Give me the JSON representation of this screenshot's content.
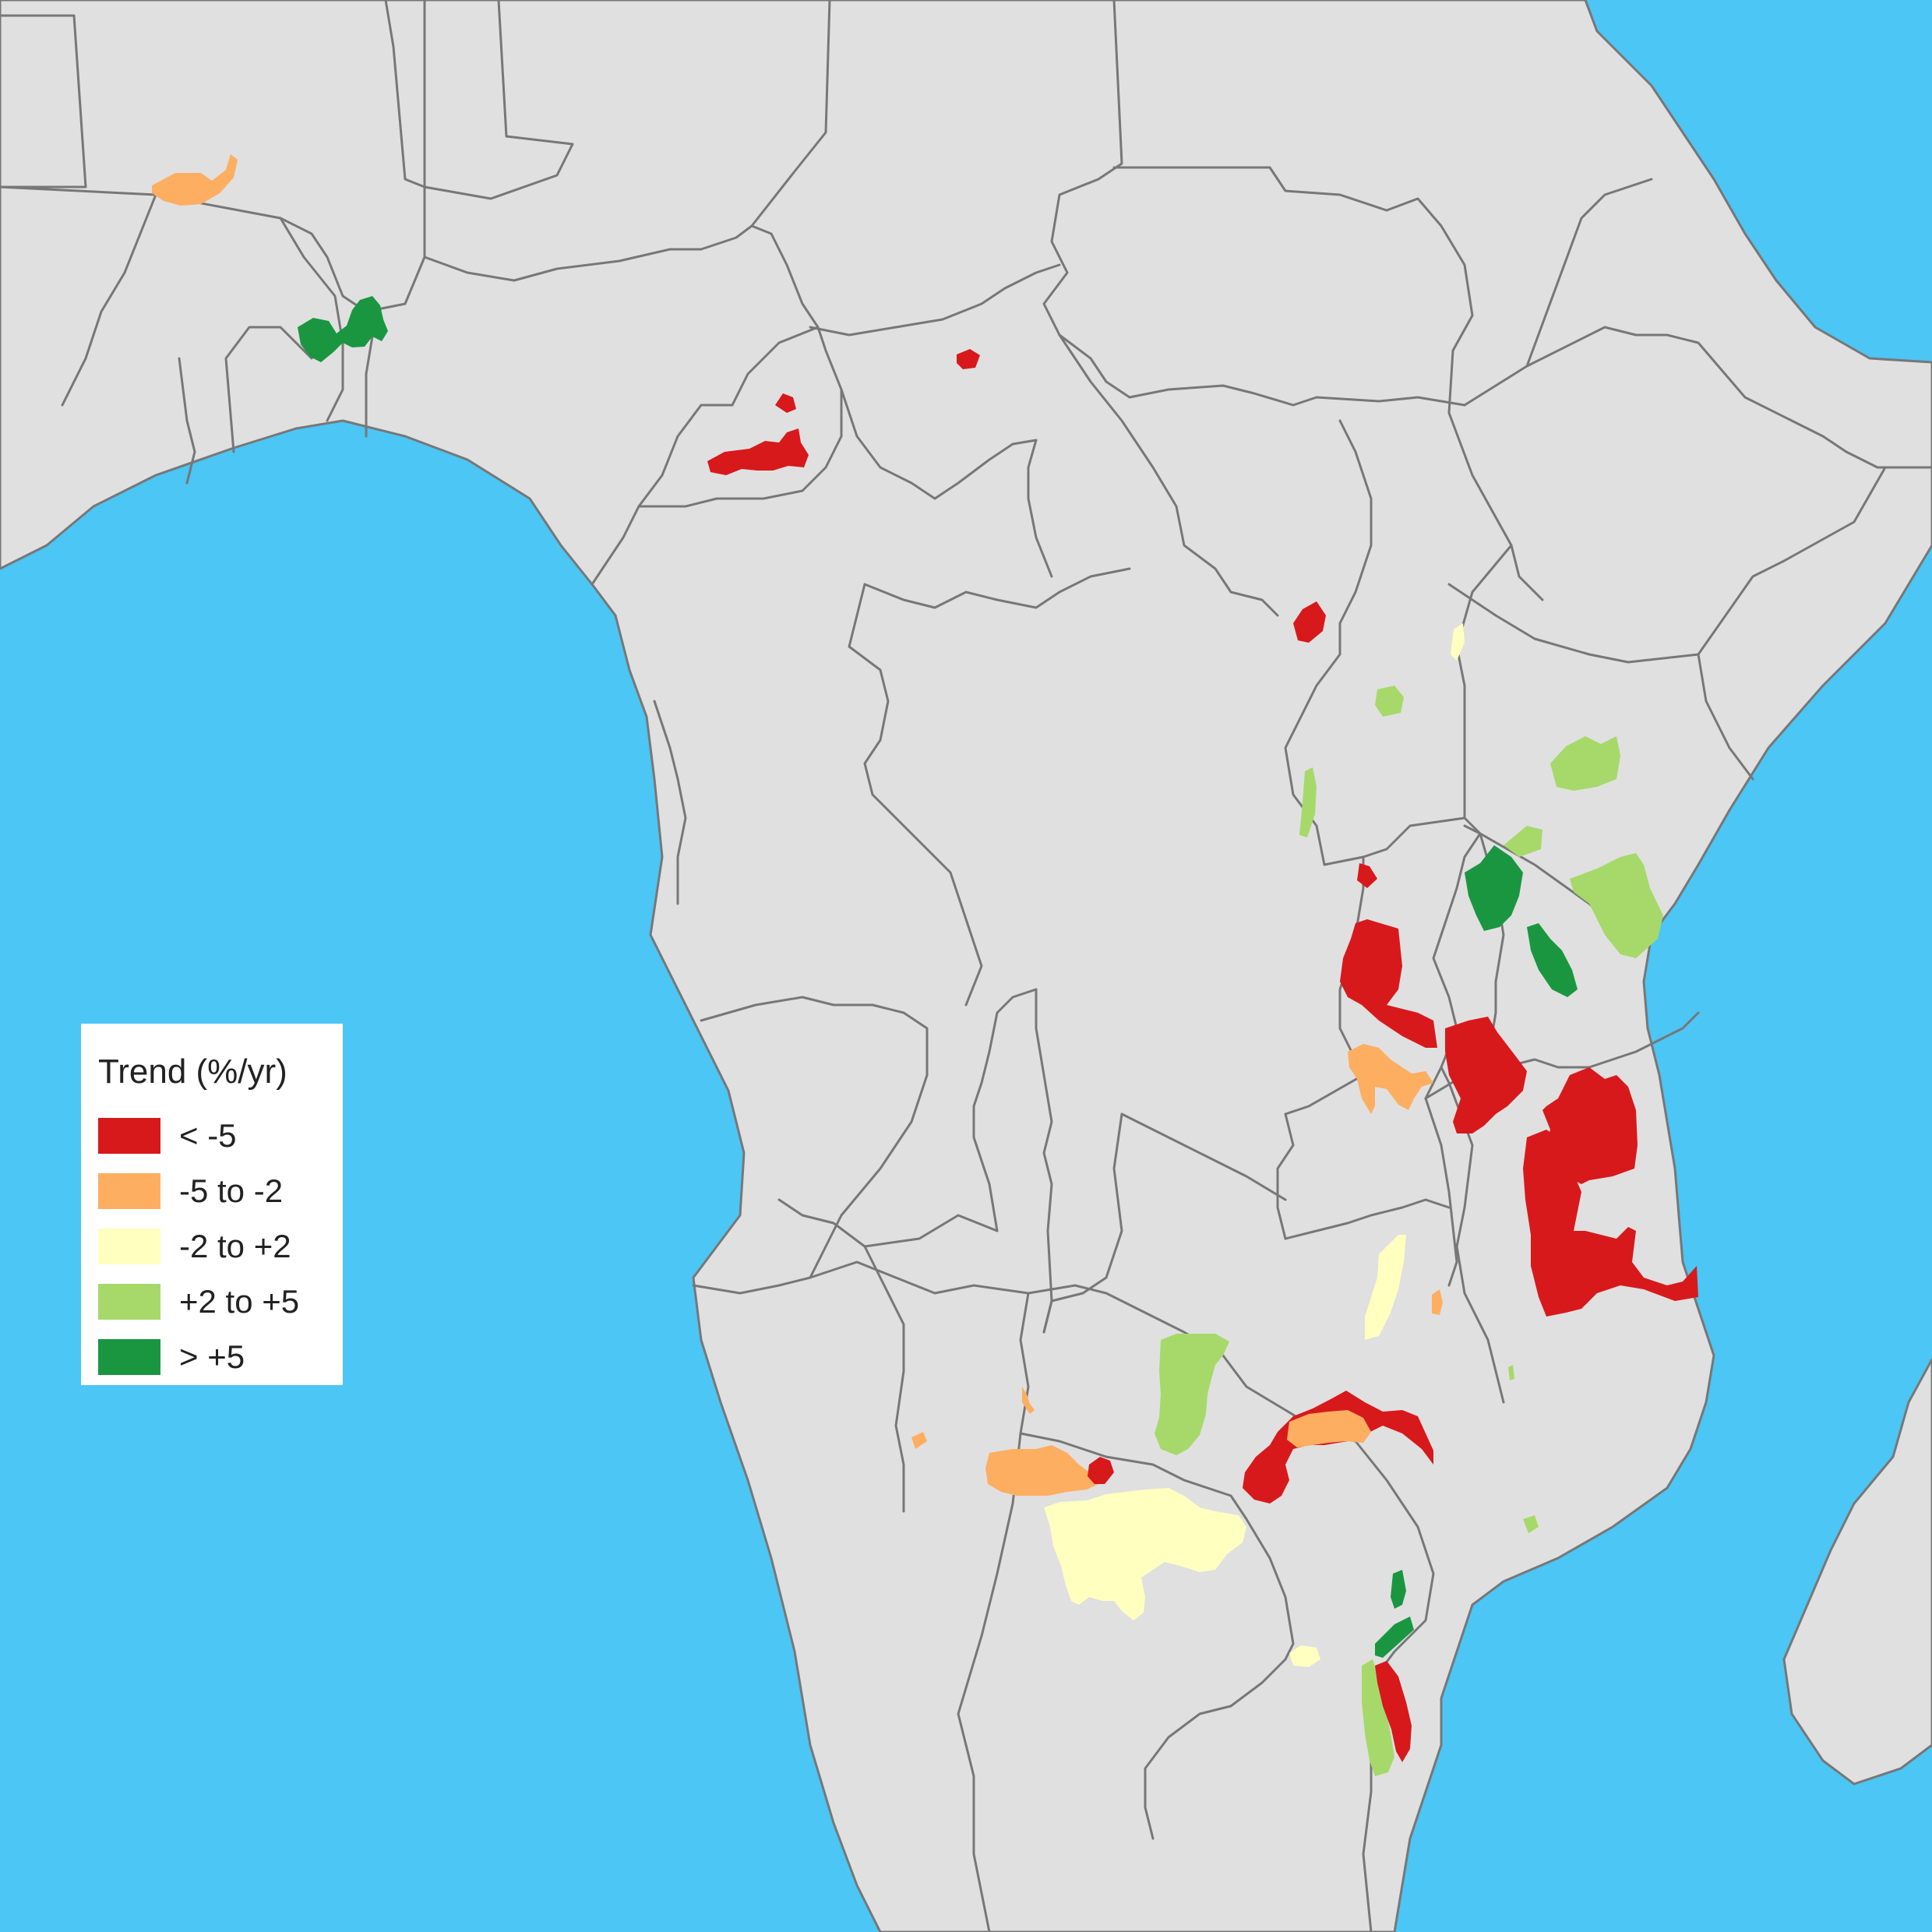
{
  "legend": {
    "title": "Trend (%/yr)",
    "items": [
      {
        "label": "< -5",
        "color": "#d7191c"
      },
      {
        "label": "-5 to -2",
        "color": "#fdae61"
      },
      {
        "label": "-2 to +2",
        "color": "#ffffc0"
      },
      {
        "label": "+2 to +5",
        "color": "#a6d96a"
      },
      {
        "label": "> +5",
        "color": "#1a9641"
      }
    ]
  },
  "colors": {
    "ocean": "#4bc6f5",
    "land": "#e0e0e0",
    "border": "#777777"
  }
}
